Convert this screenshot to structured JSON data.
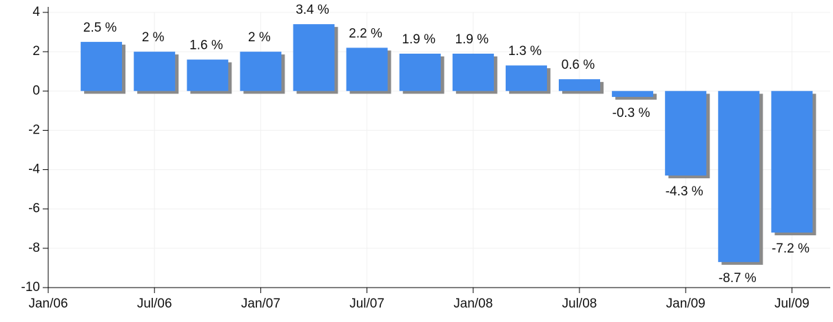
{
  "chart_data": {
    "type": "bar",
    "categories": [
      "Jan/06",
      null,
      "Jul/06",
      null,
      "Jan/07",
      null,
      "Jul/07",
      null,
      "Jan/08",
      null,
      "Jul/08",
      null,
      "Jan/09",
      null,
      "Jul/09"
    ],
    "values": [
      null,
      2.5,
      2,
      1.6,
      2,
      3.4,
      2.2,
      1.9,
      1.9,
      1.3,
      0.6,
      -0.3,
      -4.3,
      -8.7,
      -7.2
    ],
    "value_labels": [
      null,
      "2.5 %",
      "2 %",
      "1.6 %",
      "2 %",
      "3.4 %",
      "2.2 %",
      "1.9 %",
      "1.9 %",
      "1.3 %",
      "0.6 %",
      "-0.3 %",
      "-4.3 %",
      "-8.7 %",
      "-7.2 %"
    ],
    "color": "#428bed",
    "ylim": [
      -10,
      4
    ],
    "yticks": [
      -10,
      -8,
      -6,
      -4,
      -2,
      0,
      2,
      4
    ],
    "grid": true
  }
}
